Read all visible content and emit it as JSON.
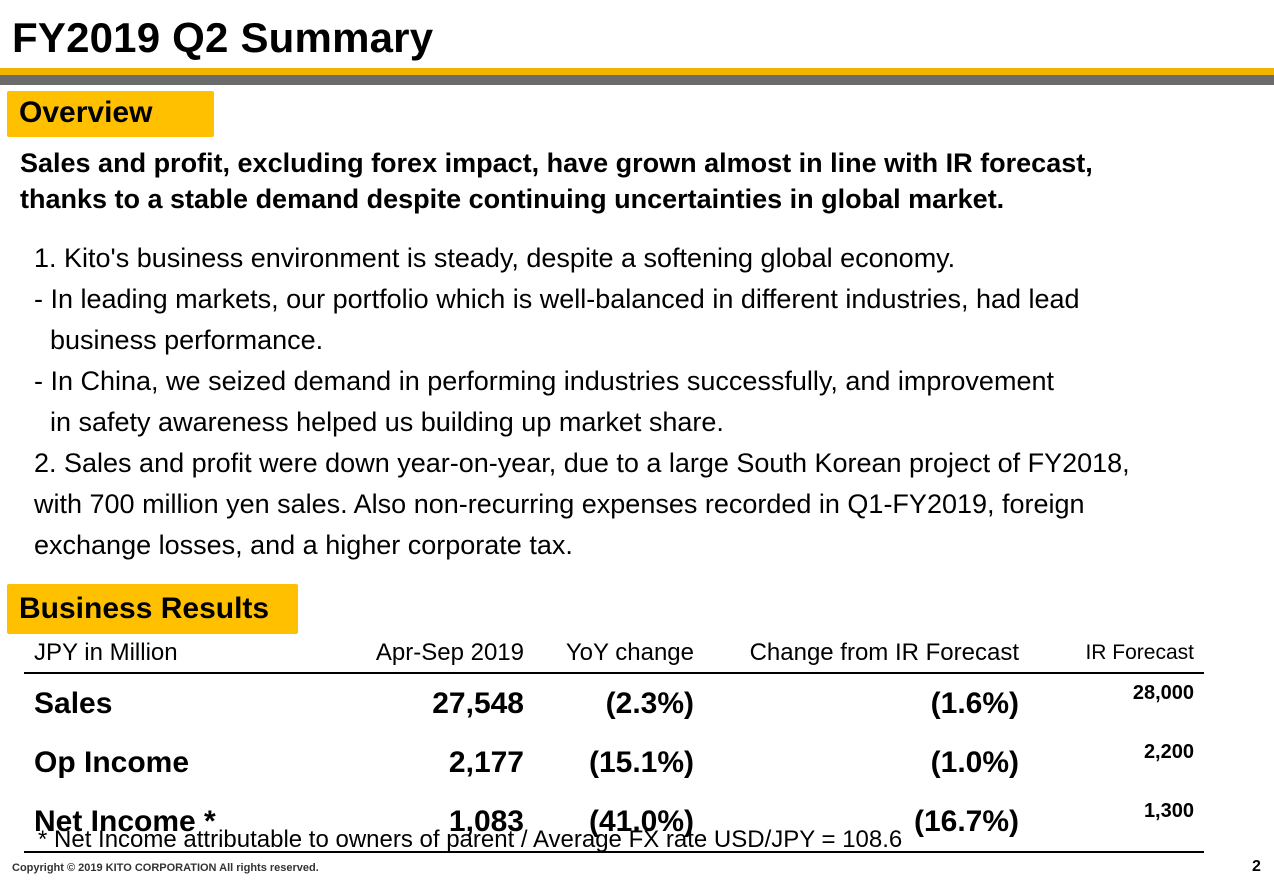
{
  "title": "FY2019 Q2 Summary",
  "overview": {
    "tag": "Overview",
    "headline_lines": [
      "Sales and profit, excluding forex impact, have grown almost in line with IR forecast,",
      "thanks to a stable demand despite continuing uncertainties in global market."
    ],
    "body_lines": [
      " 1.  Kito's business environment is steady, despite a softening global economy.",
      "- In leading markets, our portfolio which is well-balanced in different industries, had lead",
      "business performance.",
      "- In China, we seized demand in performing industries successfully, and improvement",
      "in safety awareness helped us building up market share.",
      "2.  Sales and profit were down year-on-year, due to a large South Korean project of FY2018,",
      "with 700 million yen sales. Also non-recurring expenses recorded in Q1-FY2019, foreign",
      "exchange losses, and a higher corporate tax."
    ]
  },
  "results": {
    "tag": "Business Results",
    "headers": [
      "JPY in Million",
      "Apr-Sep 2019",
      "YoY change",
      "Change from IR Forecast",
      "IR Forecast"
    ],
    "rows": [
      [
        "Sales",
        "27,548",
        "(2.3%)",
        "(1.6%)",
        "28,000"
      ],
      [
        "Op Income",
        "2,177",
        "(15.1%)",
        "(1.0%)",
        "2,200"
      ],
      [
        "Net Income *",
        "1,083",
        "(41.0%)",
        "(16.7%)",
        "1,300"
      ]
    ],
    "footnote": "* Net Income attributable to owners of parent  /  Average FX rate  USD/JPY  =  108.6"
  },
  "footer": {
    "copyright": "Copyright © 2019  KITO CORPORATION  All rights reserved.",
    "page_number": "2"
  },
  "colors": {
    "accent_gold": "#ffc000",
    "rule_gold": "#f2b200",
    "rule_grey": "#6b6b6b"
  }
}
